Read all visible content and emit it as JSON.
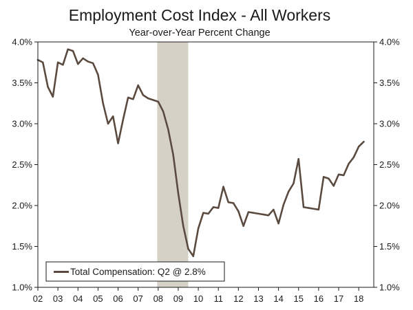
{
  "chart_data": {
    "type": "line",
    "title": "Employment Cost Index - All Workers",
    "subtitle": "Year-over-Year Percent Change",
    "xlabel": "",
    "ylabel": "",
    "x_tick_labels": [
      "02",
      "03",
      "04",
      "05",
      "06",
      "07",
      "08",
      "09",
      "10",
      "11",
      "12",
      "13",
      "14",
      "15",
      "16",
      "17",
      "18"
    ],
    "y_tick_labels": [
      "4.0%",
      "3.5%",
      "3.0%",
      "2.5%",
      "2.0%",
      "1.5%",
      "1.0%"
    ],
    "xlim": [
      2002.0,
      2018.75
    ],
    "ylim": [
      1.0,
      4.0
    ],
    "y_ticks": [
      4.0,
      3.5,
      3.0,
      2.5,
      2.0,
      1.5,
      1.0
    ],
    "recession": {
      "start": 2007.95,
      "end": 2009.5,
      "color": "#d6d1c6"
    },
    "legend": {
      "position": "bottom-left",
      "label": "Total Compensation: Q2 @ 2.8%"
    },
    "series": [
      {
        "name": "Total Compensation",
        "color": "#5a4a3f",
        "points": [
          [
            2002.0,
            3.78
          ],
          [
            2002.25,
            3.75
          ],
          [
            2002.5,
            3.45
          ],
          [
            2002.75,
            3.33
          ],
          [
            2003.0,
            3.75
          ],
          [
            2003.25,
            3.72
          ],
          [
            2003.5,
            3.91
          ],
          [
            2003.75,
            3.89
          ],
          [
            2004.0,
            3.73
          ],
          [
            2004.25,
            3.8
          ],
          [
            2004.5,
            3.76
          ],
          [
            2004.75,
            3.74
          ],
          [
            2005.0,
            3.6
          ],
          [
            2005.25,
            3.25
          ],
          [
            2005.5,
            3.0
          ],
          [
            2005.75,
            3.09
          ],
          [
            2006.0,
            2.76
          ],
          [
            2006.25,
            3.05
          ],
          [
            2006.5,
            3.32
          ],
          [
            2006.75,
            3.3
          ],
          [
            2007.0,
            3.47
          ],
          [
            2007.25,
            3.35
          ],
          [
            2007.5,
            3.31
          ],
          [
            2007.75,
            3.29
          ],
          [
            2008.0,
            3.27
          ],
          [
            2008.25,
            3.15
          ],
          [
            2008.5,
            2.93
          ],
          [
            2008.75,
            2.62
          ],
          [
            2009.0,
            2.15
          ],
          [
            2009.25,
            1.75
          ],
          [
            2009.5,
            1.47
          ],
          [
            2009.75,
            1.38
          ],
          [
            2010.0,
            1.72
          ],
          [
            2010.25,
            1.91
          ],
          [
            2010.5,
            1.9
          ],
          [
            2010.75,
            1.98
          ],
          [
            2011.0,
            1.97
          ],
          [
            2011.25,
            2.23
          ],
          [
            2011.5,
            2.04
          ],
          [
            2011.75,
            2.03
          ],
          [
            2012.0,
            1.93
          ],
          [
            2012.25,
            1.75
          ],
          [
            2012.5,
            1.92
          ],
          [
            2012.75,
            1.91
          ],
          [
            2013.0,
            1.9
          ],
          [
            2013.25,
            1.89
          ],
          [
            2013.5,
            1.88
          ],
          [
            2013.75,
            1.95
          ],
          [
            2014.0,
            1.78
          ],
          [
            2014.25,
            2.01
          ],
          [
            2014.5,
            2.17
          ],
          [
            2014.75,
            2.27
          ],
          [
            2015.0,
            2.57
          ],
          [
            2015.25,
            1.98
          ],
          [
            2015.5,
            1.97
          ],
          [
            2015.75,
            1.96
          ],
          [
            2016.0,
            1.95
          ],
          [
            2016.25,
            2.35
          ],
          [
            2016.5,
            2.33
          ],
          [
            2016.75,
            2.24
          ],
          [
            2017.0,
            2.38
          ],
          [
            2017.25,
            2.37
          ],
          [
            2017.5,
            2.51
          ],
          [
            2017.75,
            2.59
          ],
          [
            2018.0,
            2.72
          ],
          [
            2018.25,
            2.78
          ]
        ]
      }
    ]
  }
}
